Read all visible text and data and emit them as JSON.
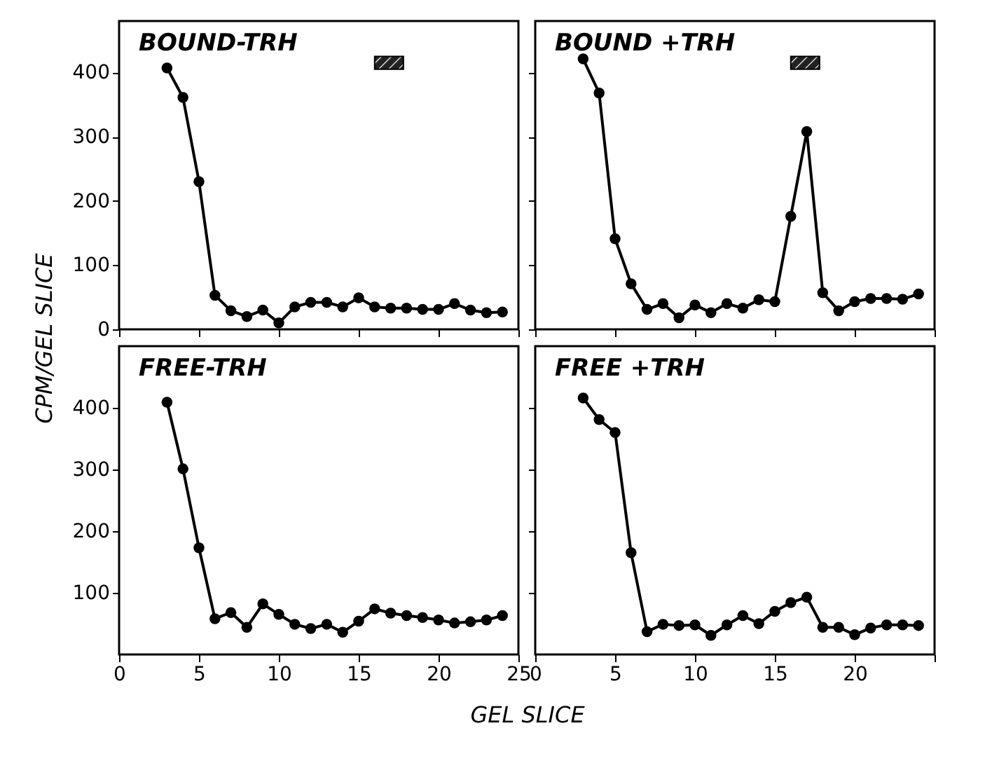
{
  "chart_data": [
    {
      "type": "line",
      "title": "BOUND-TRH",
      "ylabel": "CPM/GEL SLICE",
      "x": [
        3,
        4,
        5,
        6,
        7,
        8,
        9,
        10,
        11,
        12,
        13,
        14,
        15,
        16,
        17,
        18,
        19,
        20,
        21,
        22,
        23,
        24
      ],
      "values": [
        407,
        361,
        230,
        53,
        29,
        20,
        30,
        10,
        35,
        42,
        42,
        35,
        49,
        35,
        33,
        33,
        31,
        31,
        40,
        30,
        26,
        27
      ],
      "color": "#000000",
      "xlim": [
        0,
        25
      ],
      "xticks": [
        0,
        5,
        10,
        15,
        20,
        25
      ],
      "ylim": [
        0,
        480
      ],
      "yticks": [
        0,
        100,
        200,
        300,
        400
      ],
      "marker": "circle",
      "line_style": "solid",
      "tick_labels": "y"
    },
    {
      "type": "line",
      "title": "BOUND +TRH",
      "x": [
        3,
        4,
        5,
        6,
        7,
        8,
        9,
        10,
        11,
        12,
        13,
        14,
        15,
        16,
        17,
        18,
        19,
        20,
        21,
        22,
        23,
        24
      ],
      "values": [
        421,
        368,
        141,
        71,
        31,
        40,
        18,
        38,
        26,
        40,
        33,
        46,
        43,
        176,
        308,
        57,
        29,
        43,
        48,
        48,
        47,
        55
      ],
      "color": "#000000",
      "xlim": [
        0,
        25
      ],
      "xticks": [
        0,
        5,
        10,
        15,
        20,
        25
      ],
      "ylim": [
        0,
        480
      ],
      "yticks": [
        0,
        100,
        200,
        300,
        400
      ],
      "marker": "circle",
      "line_style": "solid",
      "tick_labels": false
    },
    {
      "type": "line",
      "title": "FREE-TRH",
      "xlabel": "GEL SLICE",
      "x": [
        3,
        4,
        5,
        6,
        7,
        8,
        9,
        10,
        11,
        12,
        13,
        14,
        15,
        16,
        17,
        18,
        19,
        20,
        21,
        22,
        23,
        24
      ],
      "values": [
        409,
        301,
        173,
        58,
        68,
        44,
        82,
        65,
        49,
        42,
        49,
        36,
        54,
        74,
        67,
        63,
        60,
        56,
        51,
        53,
        56,
        63
      ],
      "color": "#000000",
      "xlim": [
        0,
        25
      ],
      "xticks": [
        0,
        5,
        10,
        15,
        20,
        25
      ],
      "ylim": [
        0,
        500
      ],
      "yticks": [
        100,
        200,
        300,
        400
      ],
      "marker": "circle",
      "line_style": "solid"
    },
    {
      "type": "line",
      "title": "FREE +TRH",
      "x": [
        3,
        4,
        5,
        6,
        7,
        8,
        9,
        10,
        11,
        12,
        13,
        14,
        15,
        16,
        17,
        18,
        19,
        20,
        21,
        22,
        23,
        24
      ],
      "values": [
        416,
        381,
        360,
        165,
        37,
        49,
        47,
        48,
        31,
        48,
        63,
        50,
        70,
        84,
        93,
        44,
        44,
        32,
        43,
        48,
        48,
        47
      ],
      "color": "#000000",
      "xlim": [
        0,
        25
      ],
      "xticks": [
        0,
        5,
        10,
        15,
        20,
        {
          "value": 25,
          "label": null
        }
      ],
      "ylim": [
        0,
        500
      ],
      "yticks": [
        100,
        200,
        300,
        400
      ],
      "marker": "circle",
      "line_style": "solid",
      "tick_labels": "x"
    }
  ]
}
